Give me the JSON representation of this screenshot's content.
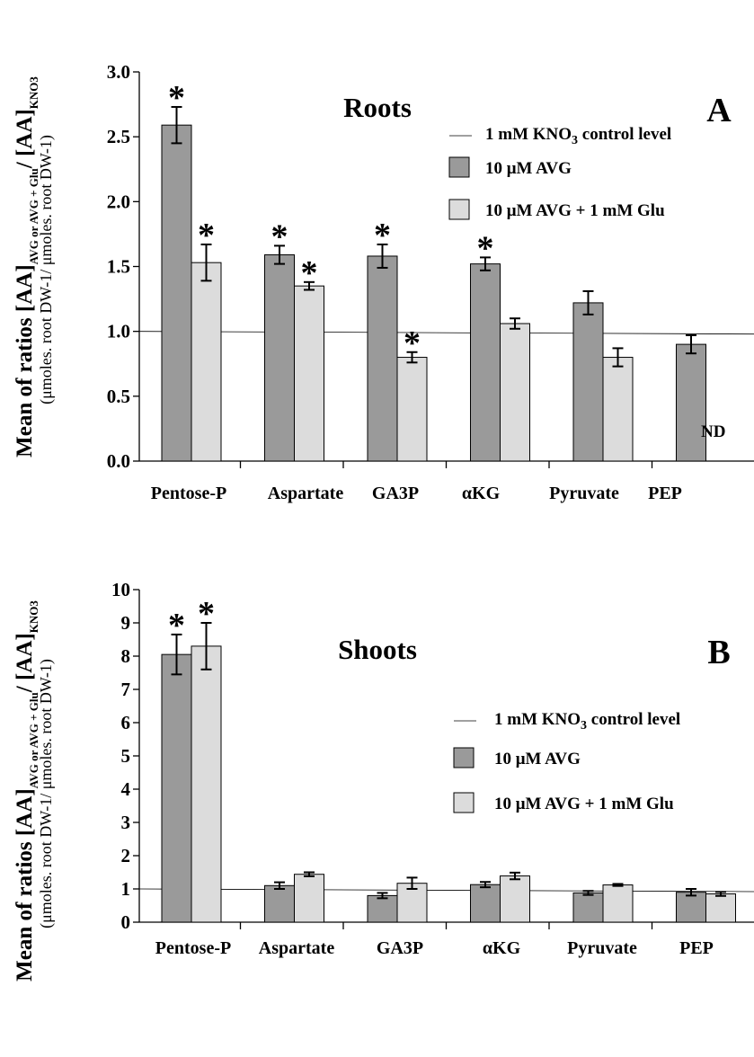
{
  "colors": {
    "avg_fill": "#9a9a9a",
    "glu_fill": "#dcdcdc",
    "stroke": "#000000",
    "control_line": "#000000"
  },
  "chart_data": [
    {
      "type": "bar",
      "title": "Roots",
      "panel_label": "A",
      "ylabel_main": "Mean of ratios [AA]",
      "ylabel_sub": "AVG or AVG + Glu",
      "ylabel_mid": "/ [AA]",
      "ylabel_sub2": "KNO3",
      "ylabel_units": "(μmoles. root DW-1/ μmoles. root DW-1)",
      "ylim": [
        0,
        3.0
      ],
      "yticks": [
        "0.0",
        "0.5",
        "1.0",
        "1.5",
        "2.0",
        "2.5",
        "3.0"
      ],
      "categories": [
        "Pentose-P",
        "Aspartate",
        "GA3P",
        "αKG",
        "Pyruvate",
        "PEP"
      ],
      "control_level": 1.0,
      "control_label": "1 mM KNO3 control level",
      "series": [
        {
          "name": "10 μM AVG",
          "values": [
            2.59,
            1.59,
            1.58,
            1.52,
            1.22,
            0.9
          ],
          "errors": [
            0.14,
            0.07,
            0.09,
            0.05,
            0.09,
            0.07
          ],
          "star": [
            true,
            true,
            true,
            true,
            false,
            false
          ]
        },
        {
          "name": "10 μM AVG + 1 mM Glu",
          "values": [
            1.53,
            1.35,
            0.8,
            1.06,
            0.8,
            null
          ],
          "errors": [
            0.14,
            0.03,
            0.04,
            0.04,
            0.07,
            null
          ],
          "star": [
            true,
            true,
            true,
            false,
            false,
            false
          ],
          "not_detected": [
            false,
            false,
            false,
            false,
            false,
            true
          ]
        }
      ],
      "nd_label": "ND"
    },
    {
      "type": "bar",
      "title": "Shoots",
      "panel_label": "B",
      "ylabel_main": "Mean of ratios [AA]",
      "ylabel_sub": "AVG or AVG + Glu",
      "ylabel_mid": "/ [AA]",
      "ylabel_sub2": "KNO3",
      "ylabel_units": "(μmoles. root DW-1/ μmoles. root DW-1)",
      "ylim": [
        0,
        10
      ],
      "yticks": [
        "0",
        "1",
        "2",
        "3",
        "4",
        "5",
        "6",
        "7",
        "8",
        "9",
        "10"
      ],
      "categories": [
        "Pentose-P",
        "Aspartate",
        "GA3P",
        "αKG",
        "Pyruvate",
        "PEP"
      ],
      "control_level": 1.0,
      "control_label": "1 mM KNO3 control level",
      "series": [
        {
          "name": "10 μM AVG",
          "values": [
            8.05,
            1.1,
            0.8,
            1.13,
            0.88,
            0.9
          ],
          "errors": [
            0.6,
            0.1,
            0.08,
            0.08,
            0.06,
            0.1
          ],
          "star": [
            true,
            false,
            false,
            false,
            false,
            false
          ]
        },
        {
          "name": "10 μM AVG + 1 mM Glu",
          "values": [
            8.3,
            1.44,
            1.17,
            1.39,
            1.12,
            0.85
          ],
          "errors": [
            0.7,
            0.06,
            0.17,
            0.1,
            0.03,
            0.06
          ],
          "star": [
            true,
            false,
            false,
            false,
            false,
            false
          ]
        }
      ]
    }
  ]
}
